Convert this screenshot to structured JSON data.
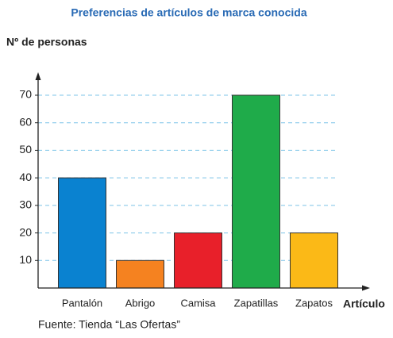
{
  "chart_data": {
    "type": "bar",
    "title": "Preferencias de artículos de marca conocida",
    "y_label": "Nº de personas",
    "x_label": "Artículo",
    "source": "Fuente: Tienda “Las Ofertas”",
    "categories": [
      "Pantalón",
      "Abrigo",
      "Camisa",
      "Zapatillas",
      "Zapatos"
    ],
    "values": [
      40,
      10,
      20,
      70,
      20
    ],
    "colors": [
      "#0a82d0",
      "#f58220",
      "#e8202a",
      "#1fab4a",
      "#fbb917"
    ],
    "ylim": [
      0,
      70
    ],
    "yticks": [
      10,
      20,
      30,
      40,
      50,
      60,
      70
    ],
    "grid": true
  }
}
